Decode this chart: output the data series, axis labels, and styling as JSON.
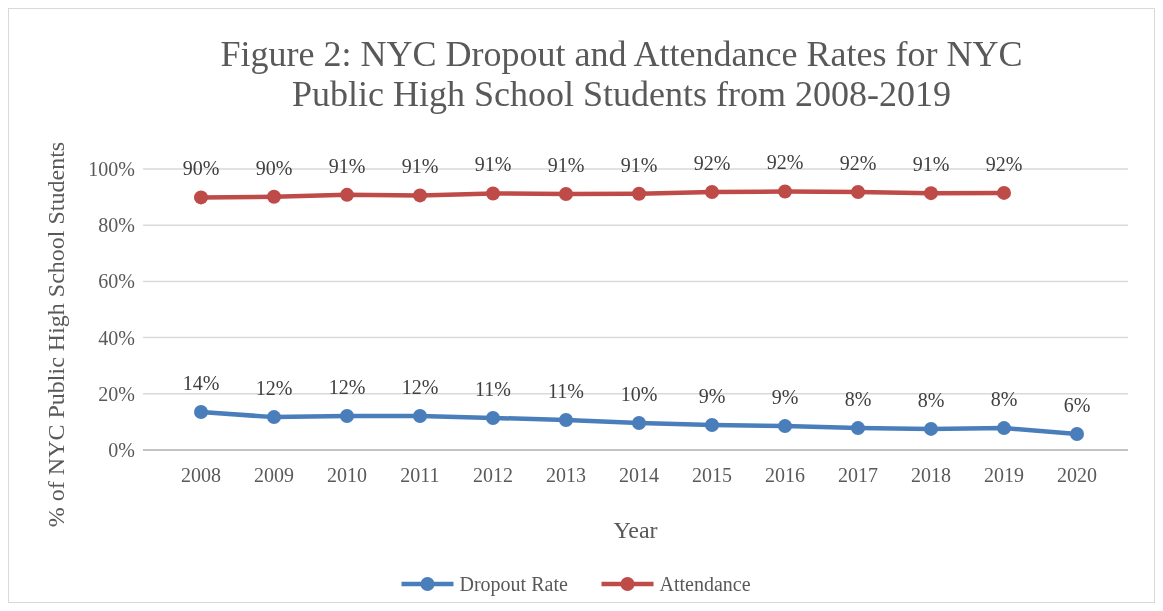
{
  "chart_data": {
    "type": "line",
    "title": "Figure 2: NYC Dropout and Attendance Rates for NYC Public High School Students from 2008-2019",
    "xlabel": "Year",
    "ylabel": "%  of NYC Public High School Students",
    "categories": [
      "2008",
      "2009",
      "2010",
      "2011",
      "2012",
      "2013",
      "2014",
      "2015",
      "2016",
      "2017",
      "2018",
      "2019",
      "2020"
    ],
    "series": [
      {
        "name": "Dropout Rate",
        "color": "#4a7ebb",
        "values": [
          13.5,
          11.7,
          12.1,
          12.1,
          11.4,
          10.7,
          9.6,
          8.9,
          8.5,
          7.8,
          7.5,
          7.8,
          5.7
        ],
        "value_labels": [
          "14%",
          "12%",
          "12%",
          "12%",
          "11%",
          "11%",
          "10%",
          "9%",
          "9%",
          "8%",
          "8%",
          "8%",
          "6%"
        ]
      },
      {
        "name": "Attendance",
        "color": "#be4b48",
        "values": [
          89.9,
          90.1,
          90.8,
          90.6,
          91.3,
          91.1,
          91.2,
          91.8,
          92.0,
          91.8,
          91.4,
          91.5,
          null
        ],
        "value_labels": [
          "90%",
          "90%",
          "91%",
          "91%",
          "91%",
          "91%",
          "91%",
          "92%",
          "92%",
          "92%",
          "91%",
          "92%",
          null
        ]
      }
    ],
    "ylim": [
      0,
      100
    ],
    "yticks": [
      {
        "value": 0,
        "label": "0%"
      },
      {
        "value": 20,
        "label": "20%"
      },
      {
        "value": 40,
        "label": "40%"
      },
      {
        "value": 60,
        "label": "60%"
      },
      {
        "value": 80,
        "label": "80%"
      },
      {
        "value": 100,
        "label": "100%"
      }
    ],
    "grid": "y",
    "legend": "bottom",
    "marker": "circle",
    "line_style": "solid"
  }
}
